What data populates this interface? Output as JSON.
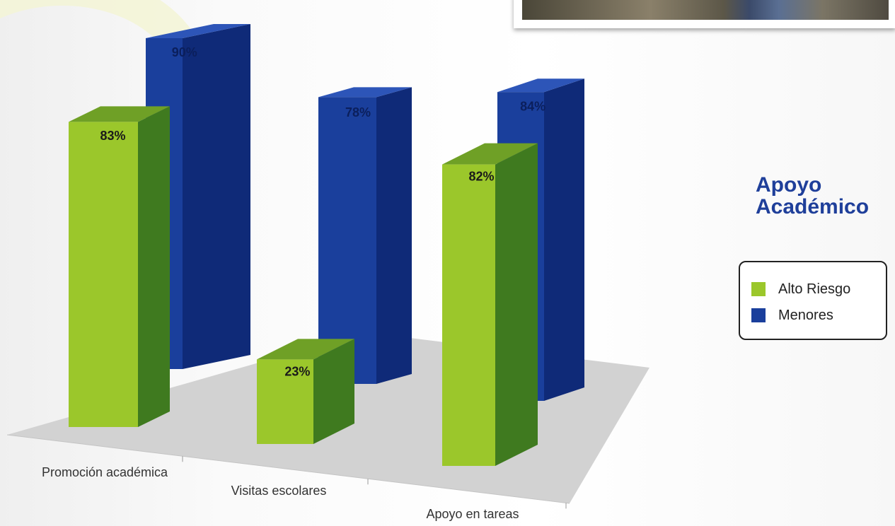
{
  "chart_data": {
    "type": "bar",
    "title": [
      "Apoyo",
      "Académico"
    ],
    "categories": [
      "Promoción académica",
      "Visitas escolares",
      "Apoyo en tareas"
    ],
    "series": [
      {
        "name": "Alto Riesgo",
        "values": [
          83,
          23,
          82
        ],
        "labels": [
          "83%",
          "23%",
          "82%"
        ]
      },
      {
        "name": "Menores",
        "values": [
          90,
          78,
          84
        ],
        "labels": [
          "90%",
          "78%",
          "84%"
        ]
      }
    ],
    "unit": "%",
    "style": "3d-columns",
    "legend_position": "right"
  },
  "colors": {
    "alto_riesgo_front": "#9bc72b",
    "alto_riesgo_side": "#3f7a1f",
    "alto_riesgo_top": "#6fa026",
    "menores_front": "#1a3f9c",
    "menores_side": "#0f2a78",
    "menores_top": "#2d55b8",
    "floor": "#d2d2d2",
    "title": "#1f3f9a"
  }
}
